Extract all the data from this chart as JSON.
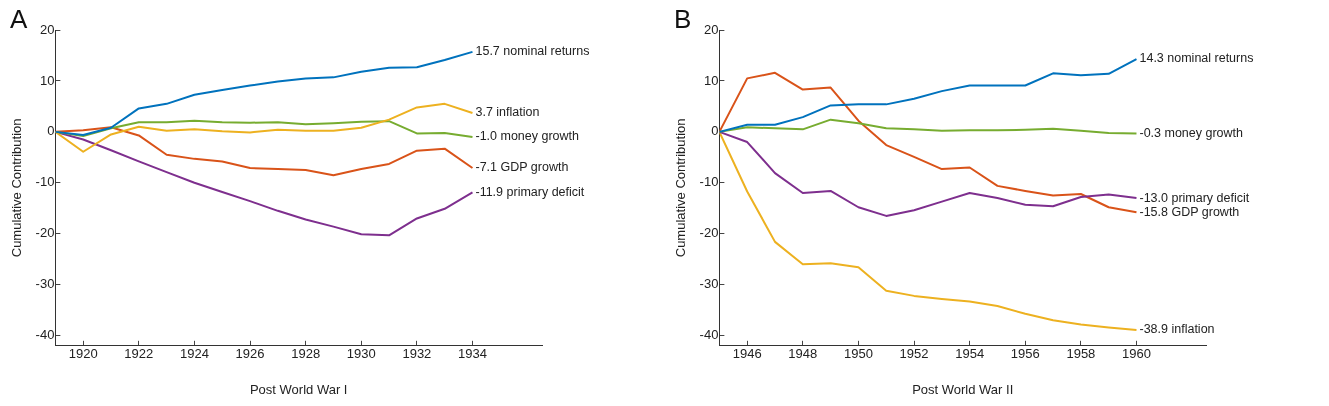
{
  "chart_data": [
    {
      "type": "line",
      "title": "A",
      "xlabel": "Post World War I",
      "ylabel": "Cumulative Contribution",
      "x": [
        1919,
        1920,
        1921,
        1922,
        1923,
        1924,
        1925,
        1926,
        1927,
        1928,
        1929,
        1930,
        1931,
        1932,
        1933,
        1934
      ],
      "xlim": [
        1919,
        1936.5
      ],
      "xticks": [
        1920,
        1922,
        1924,
        1926,
        1928,
        1930,
        1932,
        1934
      ],
      "ylim": [
        -42,
        20
      ],
      "yticks": [
        -40,
        -30,
        -20,
        -10,
        0,
        10,
        20
      ],
      "grid": false,
      "legend": false,
      "marker": "none",
      "line_style": "solid",
      "series": [
        {
          "name": "15.7 nominal returns",
          "color": "#0072bd",
          "values": [
            0,
            -0.6,
            0.8,
            4.6,
            5.5,
            7.3,
            8.2,
            9.1,
            9.9,
            10.5,
            10.7,
            11.8,
            12.6,
            12.7,
            14.1,
            15.7
          ]
        },
        {
          "name": "3.7 inflation",
          "color": "#edb120",
          "values": [
            0,
            -3.9,
            -0.5,
            1.0,
            0.2,
            0.5,
            0.1,
            -0.1,
            0.4,
            0.2,
            0.2,
            0.8,
            2.4,
            4.8,
            5.5,
            3.7
          ]
        },
        {
          "name": "-1.0 money growth",
          "color": "#77ac30",
          "values": [
            0,
            -0.8,
            0.7,
            1.9,
            1.9,
            2.2,
            1.9,
            1.8,
            1.9,
            1.5,
            1.7,
            2.0,
            2.1,
            -0.3,
            -0.2,
            -1.0
          ]
        },
        {
          "name": "-7.1 GDP growth",
          "color": "#d95319",
          "values": [
            0,
            0.3,
            0.9,
            -0.7,
            -4.5,
            -5.3,
            -5.8,
            -7.1,
            -7.3,
            -7.5,
            -8.5,
            -7.3,
            -6.3,
            -3.7,
            -3.3,
            -7.1
          ]
        },
        {
          "name": "-11.9 primary deficit",
          "color": "#7e2f8e",
          "values": [
            0,
            -1.5,
            -3.6,
            -5.8,
            -7.9,
            -10.0,
            -11.8,
            -13.6,
            -15.5,
            -17.2,
            -18.6,
            -20.1,
            -20.3,
            -17.0,
            -15.1,
            -11.9
          ]
        }
      ]
    },
    {
      "type": "line",
      "title": "B",
      "xlabel": "Post World War II",
      "ylabel": "Cumulative Contribution",
      "x": [
        1945,
        1946,
        1947,
        1948,
        1949,
        1950,
        1951,
        1952,
        1953,
        1954,
        1955,
        1956,
        1957,
        1958,
        1959,
        1960
      ],
      "xlim": [
        1945,
        1962.5
      ],
      "xticks": [
        1946,
        1948,
        1950,
        1952,
        1954,
        1956,
        1958,
        1960
      ],
      "ylim": [
        -42,
        20
      ],
      "yticks": [
        -40,
        -30,
        -20,
        -10,
        0,
        10,
        20
      ],
      "grid": false,
      "legend": false,
      "marker": "none",
      "line_style": "solid",
      "series": [
        {
          "name": "14.3 nominal returns",
          "color": "#0072bd",
          "values": [
            0,
            1.4,
            1.4,
            2.9,
            5.2,
            5.4,
            5.4,
            6.5,
            8.0,
            9.1,
            9.1,
            9.1,
            11.5,
            11.1,
            11.4,
            14.3
          ]
        },
        {
          "name": "-0.3 money growth",
          "color": "#77ac30",
          "values": [
            0,
            0.9,
            0.7,
            0.5,
            2.4,
            1.7,
            0.7,
            0.5,
            0.2,
            0.3,
            0.3,
            0.4,
            0.6,
            0.2,
            -0.2,
            -0.3
          ]
        },
        {
          "name": "-13.0 primary deficit",
          "color": "#7e2f8e",
          "values": [
            0,
            -2.0,
            -8.1,
            -12.0,
            -11.6,
            -14.8,
            -16.5,
            -15.4,
            -13.7,
            -12.0,
            -13.0,
            -14.3,
            -14.6,
            -12.8,
            -12.3,
            -13.0
          ]
        },
        {
          "name": "-15.8 GDP growth",
          "color": "#d95319",
          "values": [
            0,
            10.5,
            11.6,
            8.3,
            8.7,
            2.2,
            -2.6,
            -4.9,
            -7.3,
            -7.0,
            -10.6,
            -11.6,
            -12.5,
            -12.2,
            -14.8,
            -15.8
          ]
        },
        {
          "name": "-38.9 inflation",
          "color": "#edb120",
          "values": [
            0,
            -11.7,
            -21.6,
            -26.0,
            -25.8,
            -26.6,
            -31.2,
            -32.2,
            -32.8,
            -33.3,
            -34.2,
            -35.7,
            -37.0,
            -37.8,
            -38.4,
            -38.9
          ]
        }
      ]
    }
  ]
}
